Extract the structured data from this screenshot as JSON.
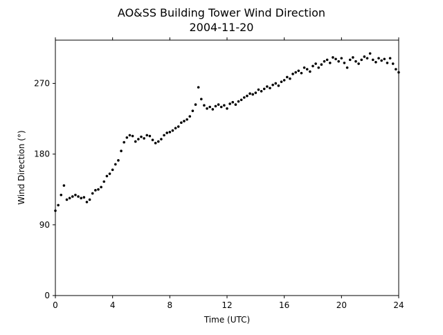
{
  "chart_data": {
    "type": "scatter",
    "title": "AO&SS Building Tower Wind Direction",
    "subtitle": "2004-11-20",
    "xlabel": "Time (UTC)",
    "ylabel": "Wind Direction (°)",
    "color": "#000000",
    "grid": false,
    "xlim": [
      0,
      24
    ],
    "xticks": [
      0,
      4,
      8,
      12,
      16,
      20,
      24
    ],
    "ylim": [
      0,
      325
    ],
    "yticks": [
      0,
      90,
      180,
      270
    ],
    "x": [
      0,
      0.2,
      0.4,
      0.6,
      0.8,
      1,
      1.2,
      1.4,
      1.6,
      1.8,
      2,
      2.2,
      2.4,
      2.6,
      2.8,
      3,
      3.2,
      3.4,
      3.6,
      3.8,
      4,
      4.2,
      4.4,
      4.6,
      4.8,
      5,
      5.2,
      5.4,
      5.6,
      5.8,
      6,
      6.2,
      6.4,
      6.6,
      6.8,
      7,
      7.2,
      7.4,
      7.6,
      7.8,
      8,
      8.2,
      8.4,
      8.6,
      8.8,
      9,
      9.2,
      9.4,
      9.6,
      9.8,
      10,
      10.2,
      10.4,
      10.6,
      10.8,
      11,
      11.2,
      11.4,
      11.6,
      11.8,
      12,
      12.2,
      12.4,
      12.6,
      12.8,
      13,
      13.2,
      13.4,
      13.6,
      13.8,
      14,
      14.2,
      14.4,
      14.6,
      14.8,
      15,
      15.2,
      15.4,
      15.6,
      15.8,
      16,
      16.2,
      16.4,
      16.6,
      16.8,
      17,
      17.2,
      17.4,
      17.6,
      17.8,
      18,
      18.2,
      18.4,
      18.6,
      18.8,
      19,
      19.2,
      19.4,
      19.6,
      19.8,
      20,
      20.2,
      20.4,
      20.6,
      20.8,
      21,
      21.2,
      21.4,
      21.6,
      21.8,
      22,
      22.2,
      22.4,
      22.6,
      22.8,
      23,
      23.2,
      23.4,
      23.6,
      23.8,
      24
    ],
    "values": [
      108,
      115,
      128,
      140,
      122,
      124,
      126,
      128,
      126,
      124,
      125,
      119,
      122,
      130,
      134,
      135,
      138,
      145,
      152,
      155,
      160,
      167,
      172,
      184,
      195,
      201,
      204,
      203,
      196,
      199,
      202,
      200,
      204,
      203,
      198,
      194,
      196,
      199,
      204,
      207,
      208,
      210,
      213,
      215,
      220,
      222,
      224,
      228,
      235,
      243,
      265,
      250,
      242,
      238,
      240,
      237,
      241,
      243,
      240,
      242,
      238,
      244,
      246,
      243,
      247,
      249,
      252,
      254,
      257,
      256,
      258,
      262,
      260,
      263,
      266,
      264,
      268,
      270,
      267,
      272,
      274,
      278,
      276,
      282,
      284,
      286,
      283,
      290,
      288,
      285,
      292,
      295,
      290,
      294,
      298,
      300,
      296,
      303,
      301,
      298,
      302,
      296,
      290,
      300,
      303,
      298,
      295,
      300,
      304,
      302,
      308,
      300,
      297,
      302,
      299,
      301,
      296,
      302,
      295,
      288,
      284
    ]
  }
}
